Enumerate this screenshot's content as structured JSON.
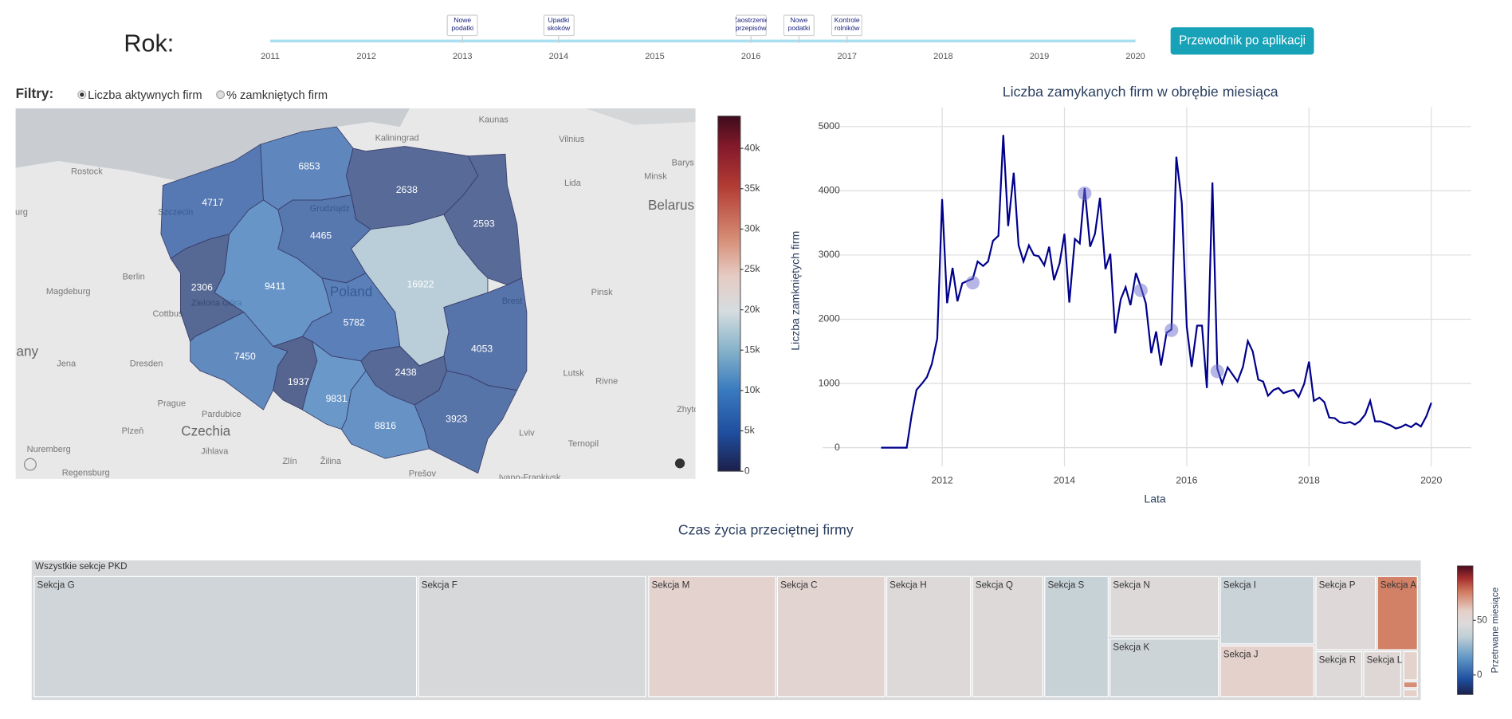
{
  "header": {
    "title": "Rok:",
    "button": "Przewodnik po aplikacji"
  },
  "slider": {
    "xlim": [
      2011,
      2020
    ],
    "ticks": [
      2011,
      2012,
      2013,
      2014,
      2015,
      2016,
      2017,
      2018,
      2019,
      2020
    ],
    "events": [
      {
        "x": 2013,
        "label": "Nowe podatki"
      },
      {
        "x": 2014,
        "label": "Upadki skoków"
      },
      {
        "x": 2016,
        "label": "Zaostrzenie przepisów"
      },
      {
        "x": 2016.5,
        "label": "Nowe podatki"
      },
      {
        "x": 2017,
        "label": "Kontrole rolników"
      }
    ]
  },
  "filters": {
    "label": "Filtry:",
    "options": [
      "Liczba aktywnych firm",
      "% zamkniętych firm"
    ],
    "selected": 0
  },
  "map_labels": [
    "Kaliningrad",
    "Kaunas",
    "Vilnius",
    "Rostock",
    "Szczecin",
    "Grudziądz",
    "Lida",
    "Minsk",
    "Belarus",
    "Barys",
    "Berlin",
    "Magdeburg",
    "Cottbus",
    "Zielona Góra",
    "Poland",
    "Brest",
    "Pinsk",
    "any",
    "Jena",
    "Dresden",
    "Lutsk",
    "Rivne",
    "Prague",
    "Pardubice",
    "Czechia",
    "Plzeň",
    "Jihlava",
    "Zlín",
    "Žilina",
    "Nuremberg",
    "Regensburg",
    "Prešov",
    "Lviv",
    "Ternopil",
    "Ivano-Frankivsk",
    "Zhyto",
    "urg"
  ],
  "chart_data": [
    {
      "type": "choropleth",
      "values": [
        4717,
        6853,
        2638,
        2593,
        4465,
        2306,
        9411,
        16922,
        5782,
        4053,
        7450,
        1937,
        2438,
        9831,
        8816,
        3923
      ],
      "zlim": [
        0,
        44000
      ],
      "zticks": [
        0,
        {
          "value": 5000,
          "label": "5k"
        },
        {
          "value": 10000,
          "label": "10k"
        },
        {
          "value": 15000,
          "label": "15k"
        },
        {
          "value": 20000,
          "label": "20k"
        },
        {
          "value": 25000,
          "label": "25k"
        },
        {
          "value": 30000,
          "label": "30k"
        },
        {
          "value": 35000,
          "label": "35k"
        },
        {
          "value": 40000,
          "label": "40k"
        }
      ],
      "colorscale": [
        [
          0,
          "#1c1f4b"
        ],
        [
          0.11,
          "#1f4fa0"
        ],
        [
          0.23,
          "#3a7bbf"
        ],
        [
          0.34,
          "#86b2c9"
        ],
        [
          0.45,
          "#d5dde0"
        ],
        [
          0.55,
          "#e6cbc3"
        ],
        [
          0.66,
          "#d58a72"
        ],
        [
          0.8,
          "#b33d35"
        ],
        [
          0.91,
          "#861a2b"
        ],
        [
          1,
          "#3e0c1c"
        ]
      ],
      "opacity": 0.72
    },
    {
      "type": "line",
      "title": "Liczba zamykanych firm w obrębie miesiąca",
      "x_label": "Lata",
      "y_label": "Liczba zamkniętych firm",
      "color": "#00008b",
      "grid": true,
      "x": [
        2011,
        2011.08,
        2011.17,
        2011.25,
        2011.33,
        2011.42,
        2011.5,
        2011.58,
        2011.67,
        2011.75,
        2011.83,
        2011.92,
        2012,
        2012.08,
        2012.17,
        2012.25,
        2012.33,
        2012.42,
        2012.5,
        2012.58,
        2012.67,
        2012.75,
        2012.83,
        2012.92,
        2013,
        2013.08,
        2013.17,
        2013.25,
        2013.33,
        2013.42,
        2013.5,
        2013.58,
        2013.67,
        2013.75,
        2013.83,
        2013.92,
        2014,
        2014.08,
        2014.17,
        2014.25,
        2014.33,
        2014.42,
        2014.5,
        2014.58,
        2014.67,
        2014.75,
        2014.83,
        2014.92,
        2015,
        2015.08,
        2015.17,
        2015.25,
        2015.33,
        2015.42,
        2015.5,
        2015.58,
        2015.67,
        2015.75,
        2015.83,
        2015.92,
        2016,
        2016.08,
        2016.17,
        2016.25,
        2016.33,
        2016.42,
        2016.5,
        2016.58,
        2016.67,
        2016.75,
        2016.83,
        2016.92,
        2017,
        2017.08,
        2017.17,
        2017.25,
        2017.33,
        2017.42,
        2017.5,
        2017.58,
        2017.67,
        2017.75,
        2017.83,
        2017.92,
        2018,
        2018.08,
        2018.17,
        2018.25,
        2018.33,
        2018.42,
        2018.5,
        2018.58,
        2018.67,
        2018.75,
        2018.83,
        2018.92,
        2019,
        2019.08,
        2019.17,
        2019.25,
        2019.33,
        2019.42,
        2019.5,
        2019.58,
        2019.67,
        2019.75,
        2019.83,
        2019.92,
        2020
      ],
      "values": [
        0,
        0,
        0,
        0,
        0,
        0,
        500,
        900,
        1000,
        1100,
        1300,
        1700,
        3870,
        2250,
        2800,
        2280,
        2560,
        2600,
        2630,
        2900,
        2830,
        2900,
        3220,
        3300,
        4870,
        3450,
        4280,
        3150,
        2900,
        3150,
        3000,
        2980,
        2840,
        3130,
        2610,
        2870,
        3330,
        2260,
        3250,
        3180,
        4040,
        3130,
        3330,
        3890,
        2780,
        3020,
        1780,
        2310,
        2500,
        2220,
        2720,
        2500,
        2250,
        1470,
        1810,
        1280,
        1790,
        1840,
        4530,
        3810,
        1880,
        1260,
        1900,
        1900,
        930,
        4130,
        1230,
        1000,
        1250,
        1140,
        1030,
        1260,
        1660,
        1500,
        1060,
        1030,
        810,
        900,
        930,
        850,
        880,
        900,
        790,
        990,
        1340,
        730,
        780,
        710,
        470,
        460,
        400,
        380,
        400,
        360,
        410,
        520,
        730,
        410,
        410,
        380,
        350,
        300,
        320,
        360,
        320,
        380,
        330,
        490,
        700
      ],
      "markers": {
        "x": [
          2012.5,
          2014.33,
          2015.25,
          2015.75,
          2016.5
        ],
        "values": [
          2570,
          3960,
          2450,
          1830,
          1190
        ],
        "color": "rgba(110,110,205,0.5)"
      },
      "xlim": [
        2010.04,
        2020.65
      ],
      "ylim": [
        -290,
        5300
      ],
      "xticks": [
        2012,
        2014,
        2016,
        2018,
        2020
      ],
      "yticks": [
        0,
        1000,
        2000,
        3000,
        4000,
        5000
      ]
    },
    {
      "type": "treemap",
      "title": "Czas życia przeciętnej firmy",
      "root": "Wszystkie sekcje PKD",
      "colorbar_label": "Przetrwane miesiące",
      "labels": [
        "Sekcja G",
        "Sekcja F",
        "Sekcja M",
        "Sekcja C",
        "Sekcja H",
        "Sekcja Q",
        "Sekcja S",
        "Sekcja N",
        "Sekcja K",
        "Sekcja I",
        "Sekcja J",
        "Sekcja P",
        "Sekcja A",
        "Sekcja R",
        "Sekcja L",
        null,
        null,
        null
      ],
      "values": [
        42,
        45,
        55,
        53,
        48,
        48,
        38,
        48,
        40,
        39,
        57,
        49,
        75,
        48,
        50,
        56,
        72,
        58
      ],
      "clim": [
        -18,
        100
      ],
      "cticks": [
        0,
        50
      ],
      "colorscale": [
        [
          0,
          "#1c1f4b"
        ],
        [
          0.12,
          "#1f4fa0"
        ],
        [
          0.28,
          "#5d95c4"
        ],
        [
          0.45,
          "#c0cfd6"
        ],
        [
          0.55,
          "#dcdadb"
        ],
        [
          0.65,
          "#e6cfc8"
        ],
        [
          0.8,
          "#d07a5f"
        ],
        [
          0.9,
          "#a8302f"
        ],
        [
          1,
          "#4a0c1e"
        ]
      ]
    }
  ]
}
